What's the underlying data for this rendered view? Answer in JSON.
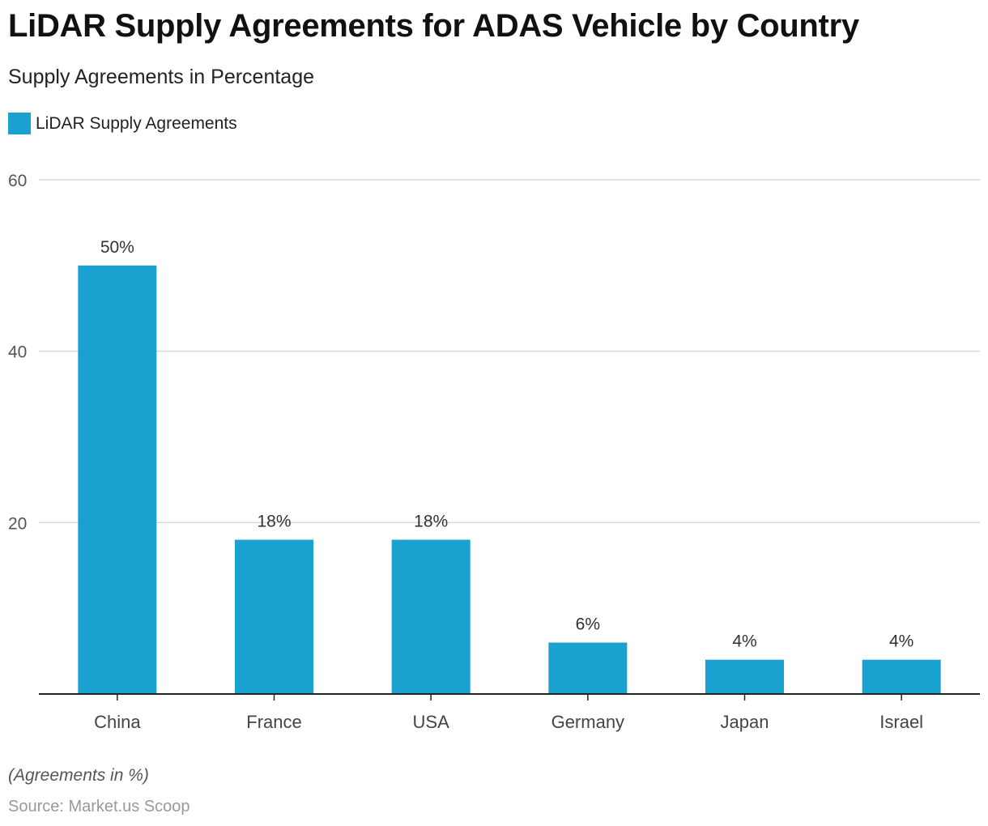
{
  "title": "LiDAR Supply Agreements for ADAS Vehicle by Country",
  "subtitle": "Supply Agreements in Percentage",
  "note": "(Agreements in %)",
  "source": "Source: Market.us Scoop",
  "colors": {
    "bar": "#1aa1cf",
    "grid": "#d9d9d9",
    "axis": "#222222"
  },
  "chart_data": {
    "type": "bar",
    "categories": [
      "China",
      "France",
      "USA",
      "Germany",
      "Japan",
      "Israel"
    ],
    "series": [
      {
        "name": "LiDAR Supply Agreements",
        "values": [
          50,
          18,
          18,
          6,
          4,
          4
        ]
      }
    ],
    "data_labels": [
      "50%",
      "18%",
      "18%",
      "6%",
      "4%",
      "4%"
    ],
    "ylim": [
      0,
      60
    ],
    "yticks": [
      20,
      40,
      60
    ],
    "grid": true,
    "legend": "top-left"
  }
}
